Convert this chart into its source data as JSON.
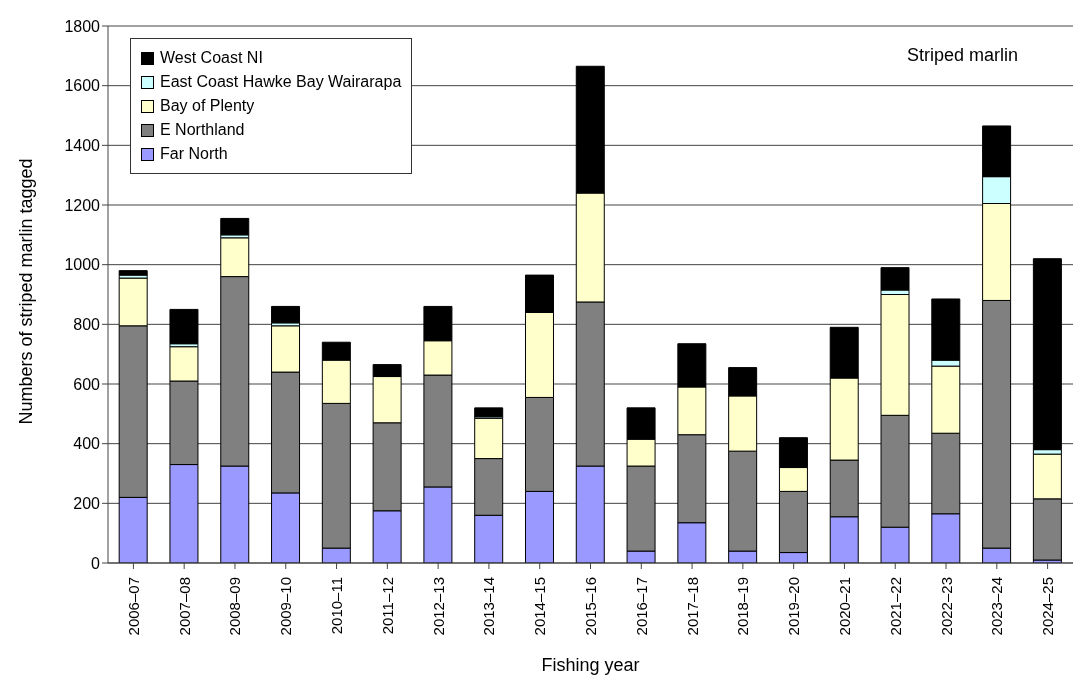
{
  "chart_data": {
    "type": "bar",
    "stacked": true,
    "title": "Striped marlin",
    "xlabel": "Fishing year",
    "ylabel": "Numbers of striped marlin tagged",
    "categories": [
      "2006–07",
      "2007–08",
      "2008–09",
      "2009–10",
      "2010–11",
      "2011–12",
      "2012–13",
      "2013–14",
      "2014–15",
      "2015–16",
      "2016–17",
      "2017–18",
      "2018–19",
      "2019–20",
      "2020–21",
      "2021–22",
      "2022–23",
      "2023–24",
      "2024–25"
    ],
    "series": [
      {
        "name": "Far North",
        "color": "#9999ff",
        "values": [
          220,
          330,
          325,
          235,
          50,
          175,
          255,
          160,
          240,
          325,
          40,
          135,
          40,
          35,
          155,
          120,
          165,
          50,
          10
        ]
      },
      {
        "name": "E Northland",
        "color": "#808080",
        "values": [
          575,
          280,
          635,
          405,
          485,
          295,
          375,
          190,
          315,
          550,
          285,
          295,
          335,
          205,
          190,
          375,
          270,
          830,
          205
        ]
      },
      {
        "name": "Bay of Plenty",
        "color": "#ffffcc",
        "values": [
          160,
          115,
          130,
          155,
          145,
          155,
          115,
          135,
          285,
          365,
          90,
          160,
          185,
          80,
          275,
          405,
          225,
          325,
          150
        ]
      },
      {
        "name": "East Coast Hawke Bay Wairarapa",
        "color": "#ccffff",
        "values": [
          10,
          10,
          10,
          10,
          0,
          0,
          0,
          5,
          0,
          0,
          0,
          0,
          0,
          0,
          0,
          15,
          20,
          90,
          15
        ]
      },
      {
        "name": "West Coast NI",
        "color": "#000000",
        "values": [
          15,
          115,
          55,
          55,
          60,
          40,
          115,
          30,
          125,
          425,
          105,
          145,
          95,
          100,
          170,
          75,
          205,
          170,
          640
        ]
      }
    ],
    "ylim": [
      0,
      1800
    ],
    "yticks": [
      0,
      200,
      400,
      600,
      800,
      1000,
      1200,
      1400,
      1600,
      1800
    ],
    "grid": "y",
    "legend": "top left"
  }
}
